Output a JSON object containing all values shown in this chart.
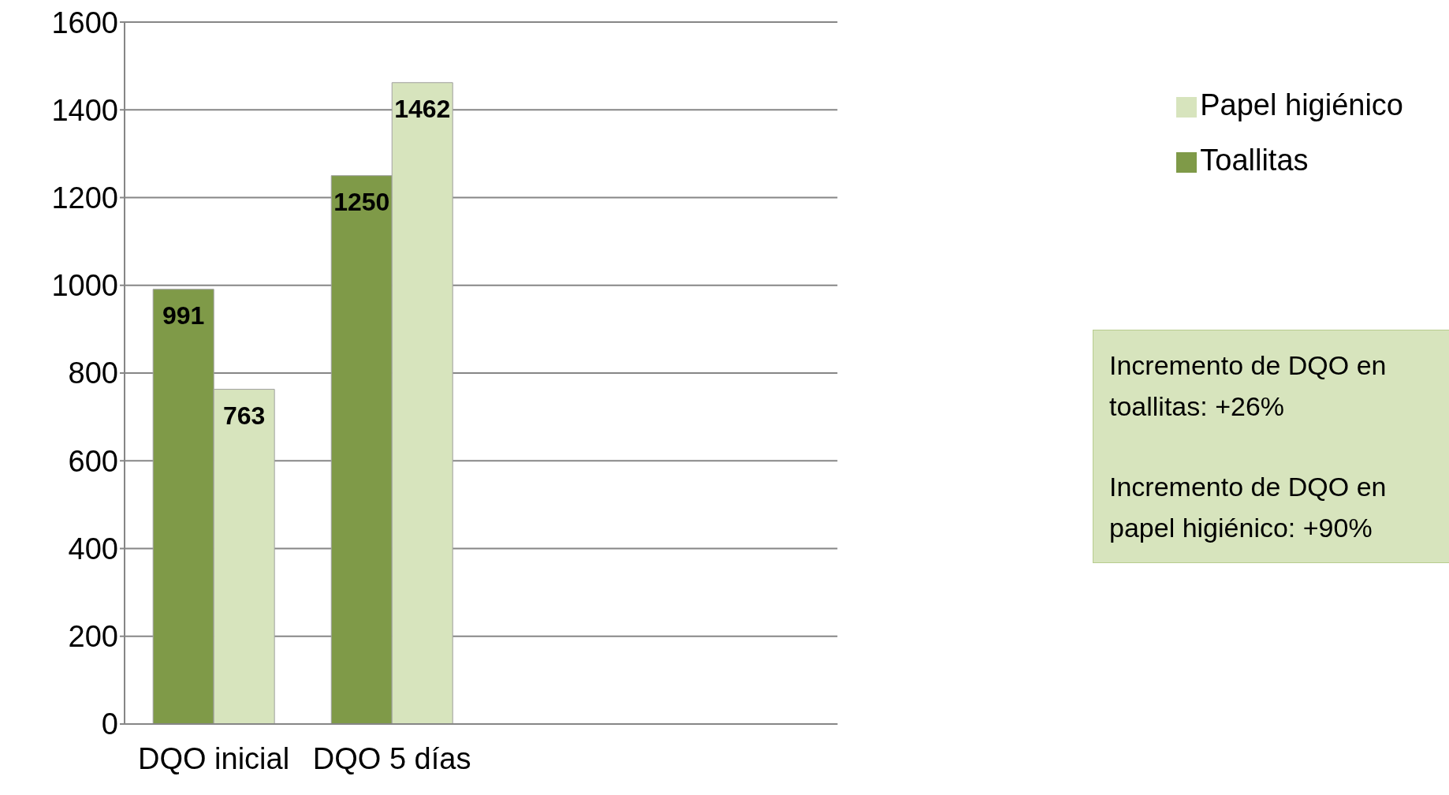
{
  "chart_data": {
    "type": "bar",
    "categories": [
      "DQO inicial",
      "DQO 5 días",
      null,
      null
    ],
    "series": [
      {
        "name": "Toallitas",
        "color": "#7f9a48",
        "values": [
          991,
          1250,
          null,
          null
        ]
      },
      {
        "name": "Papel higiénico",
        "color": "#d7e4bd",
        "values": [
          763,
          1462,
          null,
          null
        ]
      }
    ],
    "ylim": [
      0,
      1600
    ],
    "yticks": [
      0,
      200,
      400,
      600,
      800,
      1000,
      1200,
      1400,
      1600
    ],
    "grid": "y",
    "legend": "right",
    "data_labels": true,
    "annotations": [
      "Incremento de DQO en toallitas: +26%",
      "Incremento de DQO en papel higiénico: +90%"
    ]
  }
}
